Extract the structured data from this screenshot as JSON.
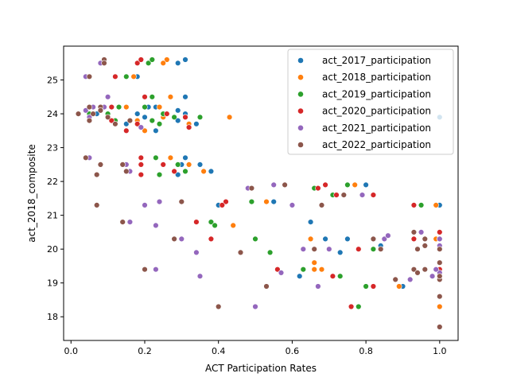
{
  "chart_data": {
    "type": "scatter",
    "xlabel": "ACT Participation Rates",
    "ylabel": "act_2018_composite",
    "xlim": [
      -0.02,
      1.05
    ],
    "ylim": [
      17.3,
      26.0
    ],
    "x_ticks": [
      0.0,
      0.2,
      0.4,
      0.6,
      0.8,
      1.0
    ],
    "x_tick_labels": [
      "0.0",
      "0.2",
      "0.4",
      "0.6",
      "0.8",
      "1.0"
    ],
    "y_ticks": [
      18,
      19,
      20,
      21,
      22,
      23,
      24,
      25
    ],
    "y_tick_labels": [
      "18",
      "19",
      "20",
      "21",
      "22",
      "23",
      "24",
      "25"
    ],
    "grid": false,
    "legend_position": "top-right",
    "series": [
      {
        "name": "act_2017_participation",
        "color": "#1f77b4",
        "points": [
          [
            0.31,
            25.6
          ],
          [
            0.29,
            25.5
          ],
          [
            0.18,
            25.1
          ],
          [
            0.23,
            24.2
          ],
          [
            0.31,
            24.5
          ],
          [
            0.31,
            24.0
          ],
          [
            0.29,
            24.1
          ],
          [
            0.29,
            23.8
          ],
          [
            0.34,
            23.7
          ],
          [
            0.21,
            24.2
          ],
          [
            0.18,
            24.0
          ],
          [
            0.15,
            23.7
          ],
          [
            0.2,
            23.9
          ],
          [
            0.23,
            23.5
          ],
          [
            0.08,
            24.1
          ],
          [
            0.06,
            24.2
          ],
          [
            0.07,
            24.0
          ],
          [
            0.31,
            22.7
          ],
          [
            0.3,
            22.5
          ],
          [
            0.35,
            22.5
          ],
          [
            0.38,
            22.3
          ],
          [
            0.29,
            22.2
          ],
          [
            0.4,
            21.3
          ],
          [
            0.55,
            21.4
          ],
          [
            0.65,
            20.8
          ],
          [
            0.69,
            20.3
          ],
          [
            0.75,
            20.3
          ],
          [
            0.62,
            19.2
          ],
          [
            0.66,
            19.4
          ],
          [
            0.73,
            19.9
          ],
          [
            0.84,
            20.1
          ],
          [
            0.8,
            21.9
          ],
          [
            0.9,
            18.9
          ],
          [
            1.0,
            21.3
          ],
          [
            1.0,
            23.9
          ]
        ]
      },
      {
        "name": "act_2018_participation",
        "color": "#ff7f0e",
        "points": [
          [
            0.26,
            25.6
          ],
          [
            0.25,
            25.5
          ],
          [
            0.17,
            25.1
          ],
          [
            0.27,
            24.5
          ],
          [
            0.15,
            24.2
          ],
          [
            0.24,
            24.2
          ],
          [
            0.25,
            23.9
          ],
          [
            0.32,
            23.7
          ],
          [
            0.18,
            23.8
          ],
          [
            0.2,
            23.5
          ],
          [
            0.31,
            23.9
          ],
          [
            0.43,
            23.9
          ],
          [
            0.27,
            22.7
          ],
          [
            0.32,
            22.5
          ],
          [
            0.36,
            22.3
          ],
          [
            0.53,
            21.4
          ],
          [
            0.72,
            21.6
          ],
          [
            0.77,
            21.9
          ],
          [
            0.44,
            20.7
          ],
          [
            0.65,
            20.3
          ],
          [
            0.68,
            19.4
          ],
          [
            0.66,
            19.4
          ],
          [
            0.66,
            19.6
          ],
          [
            0.89,
            18.9
          ],
          [
            0.99,
            20.3
          ],
          [
            1.0,
            18.3
          ],
          [
            0.99,
            21.3
          ],
          [
            1.0,
            19.2
          ]
        ]
      },
      {
        "name": "act_2019_participation",
        "color": "#2ca02c",
        "points": [
          [
            0.15,
            25.1
          ],
          [
            0.21,
            25.5
          ],
          [
            0.22,
            25.6
          ],
          [
            0.22,
            24.5
          ],
          [
            0.13,
            24.2
          ],
          [
            0.25,
            24.0
          ],
          [
            0.22,
            23.8
          ],
          [
            0.24,
            23.7
          ],
          [
            0.28,
            23.9
          ],
          [
            0.35,
            23.9
          ],
          [
            0.12,
            23.8
          ],
          [
            0.1,
            24.0
          ],
          [
            0.2,
            24.2
          ],
          [
            0.05,
            24.0
          ],
          [
            0.23,
            22.7
          ],
          [
            0.31,
            22.3
          ],
          [
            0.24,
            22.2
          ],
          [
            0.29,
            22.5
          ],
          [
            0.49,
            21.4
          ],
          [
            0.38,
            20.8
          ],
          [
            0.39,
            20.7
          ],
          [
            0.5,
            20.3
          ],
          [
            0.54,
            19.9
          ],
          [
            0.63,
            19.4
          ],
          [
            0.66,
            21.8
          ],
          [
            0.71,
            21.6
          ],
          [
            0.75,
            21.9
          ],
          [
            0.82,
            20.0
          ],
          [
            0.95,
            21.3
          ],
          [
            0.73,
            19.2
          ],
          [
            0.8,
            18.9
          ],
          [
            0.78,
            18.3
          ]
        ]
      },
      {
        "name": "act_2020_participation",
        "color": "#d62728",
        "points": [
          [
            0.12,
            25.1
          ],
          [
            0.18,
            25.5
          ],
          [
            0.19,
            25.6
          ],
          [
            0.2,
            24.5
          ],
          [
            0.11,
            24.2
          ],
          [
            0.15,
            23.5
          ],
          [
            0.18,
            23.7
          ],
          [
            0.26,
            24.0
          ],
          [
            0.31,
            23.9
          ],
          [
            0.32,
            23.6
          ],
          [
            0.11,
            23.8
          ],
          [
            0.19,
            22.7
          ],
          [
            0.19,
            22.5
          ],
          [
            0.25,
            22.5
          ],
          [
            0.28,
            22.3
          ],
          [
            0.19,
            22.2
          ],
          [
            0.42,
            21.4
          ],
          [
            0.41,
            21.3
          ],
          [
            0.34,
            20.8
          ],
          [
            0.38,
            20.3
          ],
          [
            0.56,
            19.4
          ],
          [
            0.69,
            21.9
          ],
          [
            0.67,
            21.8
          ],
          [
            0.72,
            21.6
          ],
          [
            0.82,
            21.6
          ],
          [
            0.78,
            20.0
          ],
          [
            0.71,
            19.2
          ],
          [
            0.82,
            18.9
          ],
          [
            0.76,
            18.3
          ],
          [
            1.0,
            20.5
          ],
          [
            1.0,
            20.3
          ],
          [
            0.93,
            21.3
          ],
          [
            1.0,
            19.4
          ],
          [
            0.93,
            20.3
          ]
        ]
      },
      {
        "name": "act_2021_participation",
        "color": "#9467bd",
        "points": [
          [
            0.04,
            25.1
          ],
          [
            0.08,
            25.5
          ],
          [
            0.1,
            24.5
          ],
          [
            0.06,
            24.2
          ],
          [
            0.04,
            24.1
          ],
          [
            0.09,
            24.2
          ],
          [
            0.19,
            23.6
          ],
          [
            0.05,
            23.9
          ],
          [
            0.05,
            22.7
          ],
          [
            0.15,
            22.5
          ],
          [
            0.16,
            22.3
          ],
          [
            0.2,
            21.3
          ],
          [
            0.24,
            21.4
          ],
          [
            0.16,
            20.8
          ],
          [
            0.23,
            20.7
          ],
          [
            0.3,
            20.3
          ],
          [
            0.34,
            19.9
          ],
          [
            0.35,
            19.2
          ],
          [
            0.23,
            19.4
          ],
          [
            0.48,
            21.8
          ],
          [
            0.55,
            21.9
          ],
          [
            0.6,
            21.3
          ],
          [
            0.57,
            19.3
          ],
          [
            0.5,
            18.3
          ],
          [
            0.63,
            20.0
          ],
          [
            0.67,
            18.9
          ],
          [
            0.7,
            20.0
          ],
          [
            0.79,
            21.6
          ],
          [
            0.85,
            20.3
          ],
          [
            0.86,
            20.4
          ],
          [
            0.92,
            19.1
          ],
          [
            0.95,
            20.5
          ],
          [
            1.0,
            20.1
          ],
          [
            1.0,
            19.3
          ],
          [
            1.0,
            20.3
          ],
          [
            0.98,
            19.2
          ],
          [
            0.99,
            19.4
          ]
        ]
      },
      {
        "name": "act_2022_participation",
        "color": "#8c564b",
        "points": [
          [
            0.09,
            25.6
          ],
          [
            0.09,
            25.5
          ],
          [
            0.05,
            25.1
          ],
          [
            0.02,
            24.0
          ],
          [
            0.05,
            24.2
          ],
          [
            0.06,
            24.0
          ],
          [
            0.08,
            24.2
          ],
          [
            0.08,
            24.1
          ],
          [
            0.05,
            23.8
          ],
          [
            0.12,
            23.7
          ],
          [
            0.1,
            23.9
          ],
          [
            0.16,
            23.8
          ],
          [
            0.04,
            22.7
          ],
          [
            0.08,
            22.5
          ],
          [
            0.07,
            22.2
          ],
          [
            0.14,
            22.5
          ],
          [
            0.15,
            22.3
          ],
          [
            0.07,
            21.3
          ],
          [
            0.3,
            21.4
          ],
          [
            0.14,
            20.8
          ],
          [
            0.2,
            19.4
          ],
          [
            0.28,
            20.3
          ],
          [
            0.4,
            18.3
          ],
          [
            0.46,
            19.9
          ],
          [
            0.49,
            21.8
          ],
          [
            0.58,
            21.9
          ],
          [
            0.53,
            18.9
          ],
          [
            0.66,
            20.0
          ],
          [
            0.68,
            21.3
          ],
          [
            0.74,
            21.6
          ],
          [
            0.82,
            20.3
          ],
          [
            0.84,
            20.0
          ],
          [
            0.88,
            19.1
          ],
          [
            0.93,
            20.5
          ],
          [
            0.93,
            19.4
          ],
          [
            0.94,
            20.0
          ],
          [
            0.94,
            19.3
          ],
          [
            0.96,
            20.3
          ],
          [
            0.96,
            20.1
          ],
          [
            1.0,
            19.6
          ],
          [
            1.0,
            20.0
          ],
          [
            1.0,
            19.1
          ],
          [
            1.0,
            18.6
          ],
          [
            1.0,
            17.7
          ],
          [
            0.96,
            19.4
          ],
          [
            1.0,
            19.2
          ]
        ]
      }
    ]
  }
}
